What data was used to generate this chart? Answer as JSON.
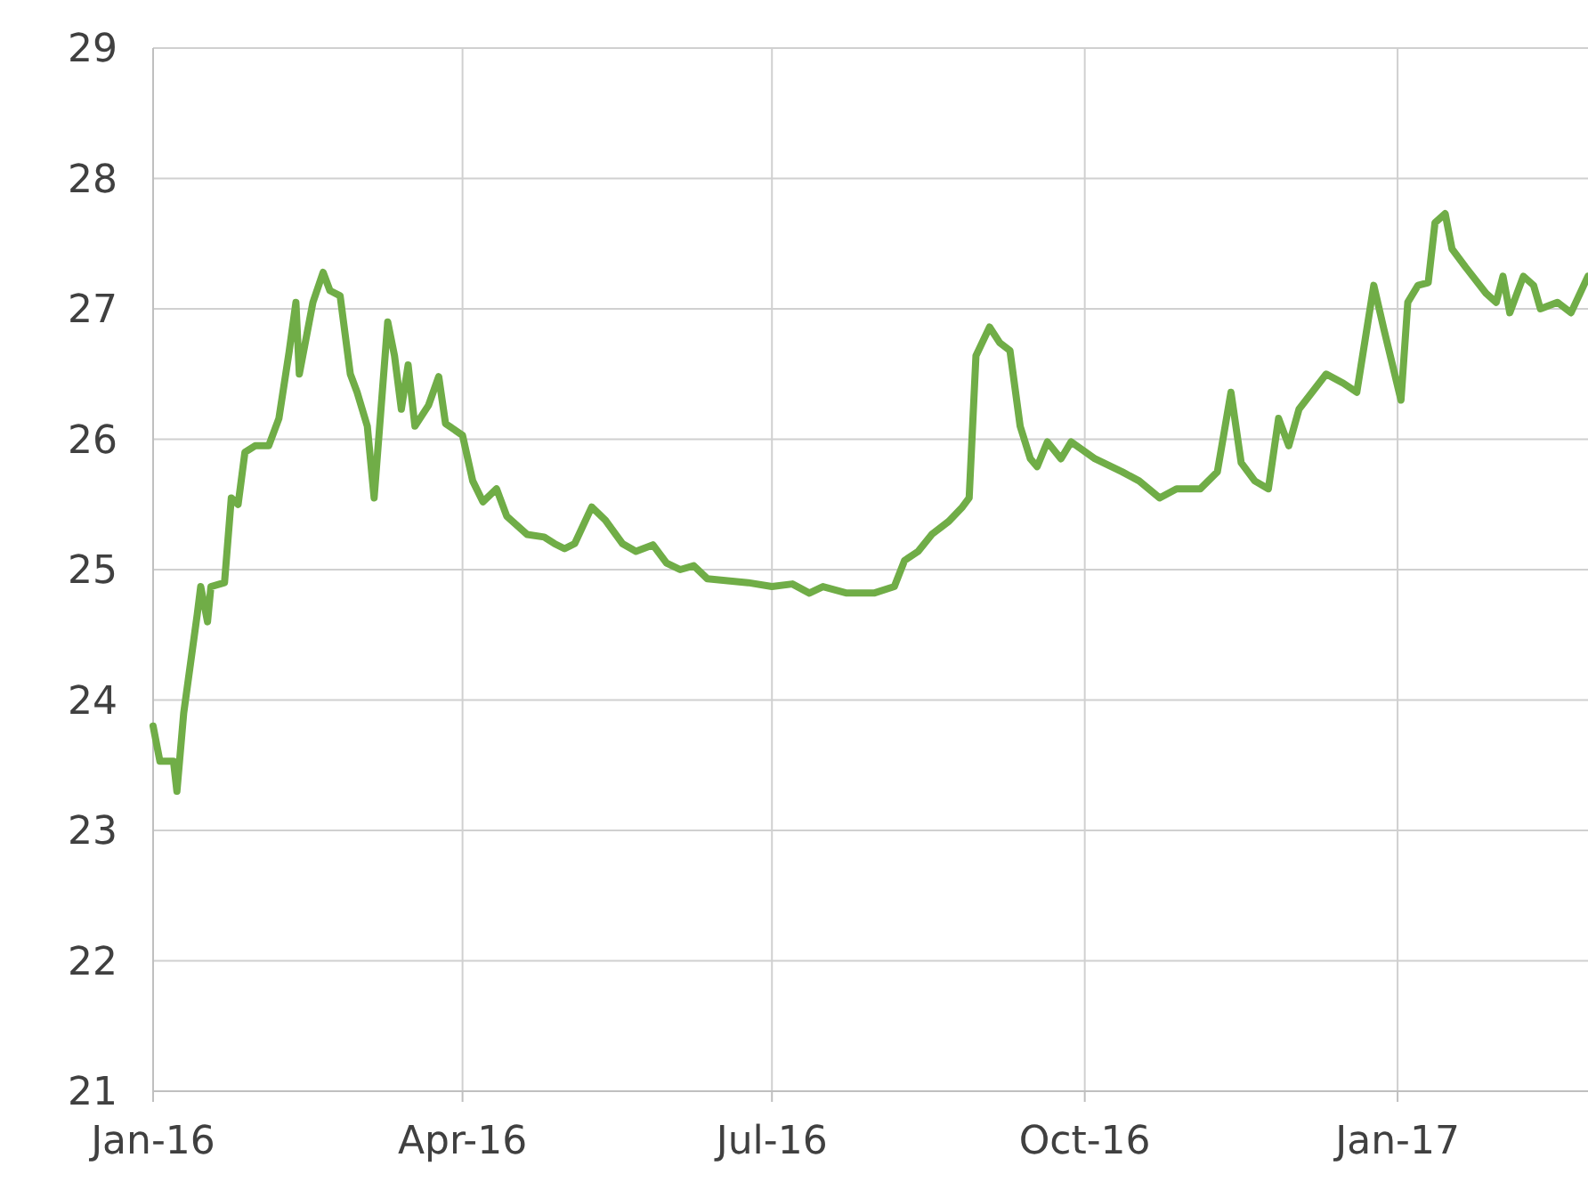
{
  "chart_data": {
    "type": "line",
    "xlim": [
      "2016-01-01",
      "2017-02-26"
    ],
    "ylim": [
      21,
      29
    ],
    "yticks": [
      21,
      22,
      23,
      24,
      25,
      26,
      27,
      28,
      29
    ],
    "xticks": [
      {
        "value": "2016-01-01",
        "label": "Jan-16"
      },
      {
        "value": "2016-04-01",
        "label": "Apr-16"
      },
      {
        "value": "2016-07-01",
        "label": "Jul-16"
      },
      {
        "value": "2016-10-01",
        "label": "Oct-16"
      },
      {
        "value": "2017-01-01",
        "label": "Jan-17"
      }
    ],
    "grid": true,
    "marker": "none",
    "line_style": "solid",
    "series": [
      {
        "color": "#70ad47",
        "x": [
          "2016-01-01",
          "2016-01-03",
          "2016-01-07",
          "2016-01-08",
          "2016-01-10",
          "2016-01-14",
          "2016-01-15",
          "2016-01-17",
          "2016-01-18",
          "2016-01-22",
          "2016-01-24",
          "2016-01-26",
          "2016-01-28",
          "2016-01-31",
          "2016-02-04",
          "2016-02-07",
          "2016-02-10",
          "2016-02-12",
          "2016-02-13",
          "2016-02-17",
          "2016-02-20",
          "2016-02-22",
          "2016-02-25",
          "2016-02-28",
          "2016-03-01",
          "2016-03-04",
          "2016-03-06",
          "2016-03-10",
          "2016-03-12",
          "2016-03-14",
          "2016-03-16",
          "2016-03-18",
          "2016-03-22",
          "2016-03-25",
          "2016-03-27",
          "2016-04-01",
          "2016-04-04",
          "2016-04-07",
          "2016-04-11",
          "2016-04-14",
          "2016-04-20",
          "2016-04-25",
          "2016-04-28",
          "2016-05-01",
          "2016-05-04",
          "2016-05-09",
          "2016-05-13",
          "2016-05-18",
          "2016-05-22",
          "2016-05-27",
          "2016-05-31",
          "2016-06-04",
          "2016-06-08",
          "2016-06-12",
          "2016-06-24",
          "2016-07-01",
          "2016-07-07",
          "2016-07-12",
          "2016-07-16",
          "2016-07-23",
          "2016-07-31",
          "2016-08-06",
          "2016-08-09",
          "2016-08-13",
          "2016-08-17",
          "2016-08-22",
          "2016-08-26",
          "2016-08-28",
          "2016-08-30",
          "2016-09-03",
          "2016-09-06",
          "2016-09-09",
          "2016-09-12",
          "2016-09-15",
          "2016-09-17",
          "2016-09-20",
          "2016-09-24",
          "2016-09-27",
          "2016-10-04",
          "2016-10-12",
          "2016-10-17",
          "2016-10-23",
          "2016-10-28",
          "2016-11-04",
          "2016-11-09",
          "2016-11-13",
          "2016-11-16",
          "2016-11-20",
          "2016-11-24",
          "2016-11-27",
          "2016-11-30",
          "2016-12-03",
          "2016-12-11",
          "2016-12-16",
          "2016-12-20",
          "2016-12-25",
          "2016-12-28",
          "2017-01-02",
          "2017-01-04",
          "2017-01-07",
          "2017-01-10",
          "2017-01-12",
          "2017-01-15",
          "2017-01-17",
          "2017-01-21",
          "2017-01-27",
          "2017-01-30",
          "2017-02-01",
          "2017-02-03",
          "2017-02-07",
          "2017-02-10",
          "2017-02-12",
          "2017-02-17",
          "2017-02-21",
          "2017-02-26"
        ],
        "values": [
          23.8,
          23.53,
          23.53,
          23.3,
          23.9,
          24.66,
          24.87,
          24.6,
          24.87,
          24.9,
          25.55,
          25.5,
          25.9,
          25.95,
          25.95,
          26.16,
          26.67,
          27.05,
          26.5,
          27.05,
          27.28,
          27.14,
          27.1,
          26.5,
          26.36,
          26.1,
          25.55,
          26.9,
          26.64,
          26.23,
          26.57,
          26.1,
          26.26,
          26.48,
          26.12,
          26.03,
          25.68,
          25.52,
          25.62,
          25.41,
          25.27,
          25.25,
          25.2,
          25.16,
          25.2,
          25.48,
          25.38,
          25.2,
          25.14,
          25.19,
          25.05,
          25.0,
          25.03,
          24.93,
          24.9,
          24.87,
          24.89,
          24.82,
          24.87,
          24.82,
          24.82,
          24.87,
          25.07,
          25.14,
          25.27,
          25.37,
          25.48,
          25.55,
          26.64,
          26.86,
          26.74,
          26.68,
          26.1,
          25.85,
          25.79,
          25.98,
          25.85,
          25.98,
          25.85,
          25.75,
          25.68,
          25.55,
          25.62,
          25.62,
          25.75,
          26.36,
          25.82,
          25.68,
          25.62,
          26.16,
          25.95,
          26.23,
          26.5,
          26.43,
          26.36,
          27.18,
          26.84,
          26.3,
          27.05,
          27.18,
          27.2,
          27.66,
          27.73,
          27.46,
          27.32,
          27.12,
          27.05,
          27.25,
          26.97,
          27.25,
          27.18,
          27.0,
          27.05,
          26.97,
          27.25
        ]
      }
    ]
  }
}
